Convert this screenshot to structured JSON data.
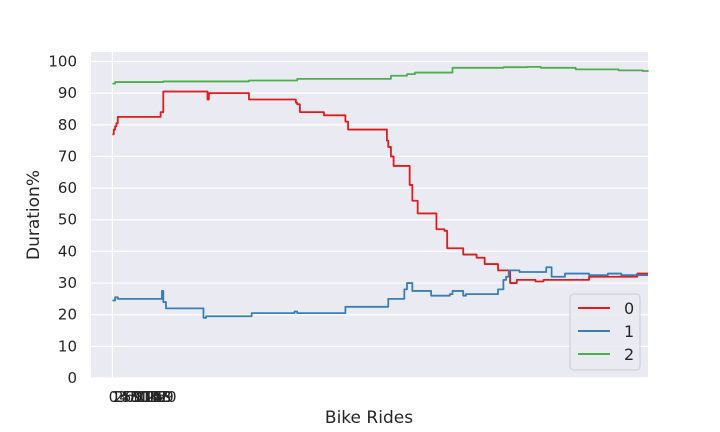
{
  "chart_data": {
    "type": "line",
    "title": "",
    "xlabel": "Bike Rides",
    "ylabel": "Duration%",
    "xlim": [
      -8,
      200
    ],
    "ylim": [
      0,
      103
    ],
    "yticks": [
      0,
      10,
      20,
      30,
      40,
      50,
      60,
      70,
      80,
      90,
      100
    ],
    "x_tick_labels_overlapping": [
      "0",
      "1",
      "2",
      "3",
      "4",
      "5",
      "6",
      "7",
      "8",
      "9",
      "10",
      "11",
      "12",
      "13",
      "14",
      "15",
      "16",
      "17",
      "18",
      "19",
      "20"
    ],
    "grid": true,
    "legend_position": "lower-right",
    "series": [
      {
        "name": "0",
        "color": "#e41a1c",
        "points": [
          [
            0,
            77
          ],
          [
            0.5,
            78.5
          ],
          [
            1,
            79.5
          ],
          [
            1.5,
            80.5
          ],
          [
            2,
            82.5
          ],
          [
            17,
            82.5
          ],
          [
            18,
            84
          ],
          [
            19,
            90.5
          ],
          [
            35,
            90.5
          ],
          [
            35.5,
            88
          ],
          [
            36,
            90
          ],
          [
            50,
            90
          ],
          [
            51,
            88
          ],
          [
            68,
            88
          ],
          [
            68.5,
            87
          ],
          [
            69,
            86.5
          ],
          [
            70,
            84
          ],
          [
            78,
            84
          ],
          [
            79,
            83
          ],
          [
            86,
            83
          ],
          [
            87,
            81
          ],
          [
            88,
            78.5
          ],
          [
            102,
            78.5
          ],
          [
            102.5,
            75
          ],
          [
            103,
            73
          ],
          [
            104,
            70
          ],
          [
            105,
            67
          ],
          [
            110,
            67
          ],
          [
            111,
            61
          ],
          [
            112,
            56
          ],
          [
            114,
            52
          ],
          [
            120,
            52
          ],
          [
            121,
            47
          ],
          [
            124,
            46.5
          ],
          [
            125,
            41
          ],
          [
            130,
            41
          ],
          [
            131,
            39
          ],
          [
            136,
            38
          ],
          [
            139,
            36
          ],
          [
            144,
            34
          ],
          [
            148,
            34
          ],
          [
            148.5,
            30
          ],
          [
            150,
            30
          ],
          [
            151,
            31
          ],
          [
            158,
            30.5
          ],
          [
            161,
            31
          ],
          [
            176,
            31
          ],
          [
            178,
            32
          ],
          [
            196,
            33
          ],
          [
            200,
            33
          ]
        ]
      },
      {
        "name": "1",
        "color": "#377eb8",
        "points": [
          [
            0,
            24.5
          ],
          [
            1,
            25.5
          ],
          [
            2,
            25
          ],
          [
            18,
            25
          ],
          [
            18.5,
            27.5
          ],
          [
            19,
            24
          ],
          [
            20,
            22
          ],
          [
            33,
            22
          ],
          [
            34,
            19
          ],
          [
            35,
            19.5
          ],
          [
            51,
            19.5
          ],
          [
            52,
            20.5
          ],
          [
            53,
            20.5
          ],
          [
            67,
            20.5
          ],
          [
            68,
            21
          ],
          [
            69,
            20.5
          ],
          [
            86,
            20.5
          ],
          [
            87,
            22.5
          ],
          [
            102,
            22.5
          ],
          [
            103,
            25
          ],
          [
            105,
            25
          ],
          [
            109,
            28
          ],
          [
            110,
            30
          ],
          [
            112,
            27.5
          ],
          [
            118,
            27.5
          ],
          [
            119,
            26
          ],
          [
            126,
            26.5
          ],
          [
            127,
            27.5
          ],
          [
            131,
            26
          ],
          [
            132,
            26.5
          ],
          [
            139,
            26.5
          ],
          [
            144,
            28
          ],
          [
            146,
            31
          ],
          [
            147,
            32
          ],
          [
            148,
            34
          ],
          [
            152,
            33.5
          ],
          [
            158,
            33.5
          ],
          [
            162,
            35
          ],
          [
            164,
            32
          ],
          [
            168,
            32
          ],
          [
            169,
            33
          ],
          [
            174,
            33
          ],
          [
            178,
            32.5
          ],
          [
            185,
            33
          ],
          [
            190,
            32.5
          ],
          [
            196,
            32.5
          ],
          [
            200,
            32.5
          ]
        ]
      },
      {
        "name": "2",
        "color": "#4daf4a",
        "points": [
          [
            0,
            93
          ],
          [
            1,
            93.5
          ],
          [
            18,
            93.5
          ],
          [
            19,
            93.7
          ],
          [
            50,
            93.7
          ],
          [
            51,
            94
          ],
          [
            68,
            94
          ],
          [
            69,
            94.5
          ],
          [
            102,
            94.5
          ],
          [
            104,
            95.5
          ],
          [
            110,
            96
          ],
          [
            113,
            96.5
          ],
          [
            125,
            96.5
          ],
          [
            127,
            98
          ],
          [
            136,
            98
          ],
          [
            146,
            98.2
          ],
          [
            155,
            98.3
          ],
          [
            160,
            98
          ],
          [
            172,
            98
          ],
          [
            173,
            97.5
          ],
          [
            188,
            97.5
          ],
          [
            189,
            97.2
          ],
          [
            198,
            97
          ],
          [
            200,
            96.8
          ]
        ]
      }
    ]
  }
}
